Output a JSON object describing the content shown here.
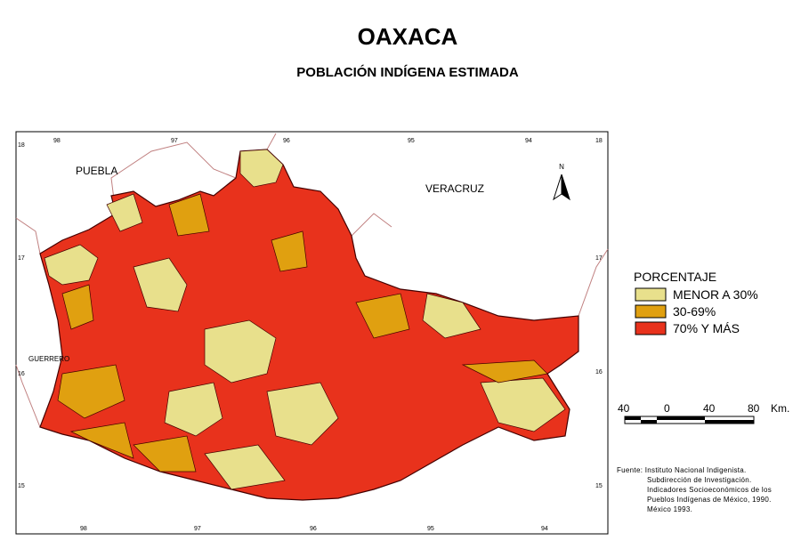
{
  "header": {
    "title": "OAXACA",
    "subtitle": "POBLACIÓN INDÍGENA ESTIMADA"
  },
  "map": {
    "neighbors": [
      "PUEBLA",
      "VERACRUZ",
      "GUERRERO"
    ],
    "north_arrow": "N",
    "top_labels": [
      "98",
      "97",
      "96",
      "95",
      "94"
    ],
    "bottom_labels": [
      "98",
      "97",
      "96",
      "95",
      "94"
    ],
    "left_labels": [
      "18",
      "17",
      "16",
      "15"
    ],
    "right_labels": [
      "18",
      "17",
      "16",
      "15"
    ]
  },
  "legend": {
    "title": "PORCENTAJE",
    "items": [
      {
        "label": "MENOR A 30%",
        "color": "#e8e08c"
      },
      {
        "label": "30-69%",
        "color": "#e0a010"
      },
      {
        "label": "70% Y MÁS",
        "color": "#e8321c"
      }
    ]
  },
  "scale": {
    "labels": [
      "40",
      "0",
      "40",
      "80"
    ],
    "unit": "Km."
  },
  "source": [
    "Fuente: Instituto Nacional Indigenista.",
    "Subdirección de Investigación.",
    "Indicadores Socioeconómicos de los",
    "Pueblos Indígenas de México, 1990.",
    "México 1993."
  ]
}
